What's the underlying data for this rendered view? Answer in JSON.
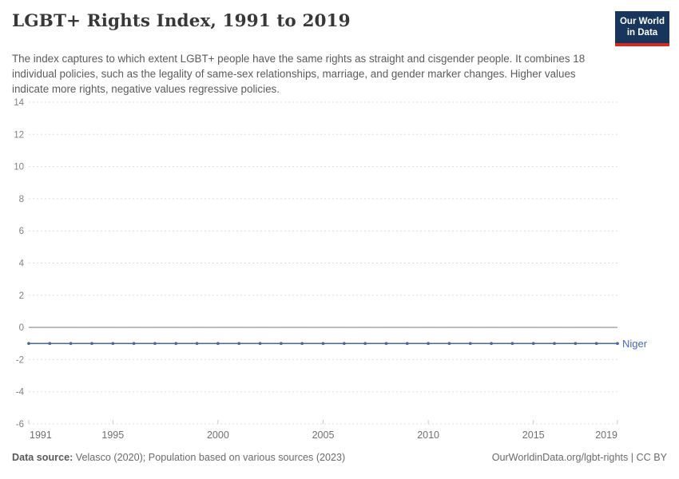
{
  "header": {
    "title": "LGBT+ Rights Index, 1991 to 2019",
    "subtitle": "The index captures to which extent LGBT+ people have the same rights as straight and cisgender people. It combines 18 individual policies, such as the legality of same-sex relationships, marriage, and gender marker changes. Higher values indicate more rights, negative values regressive policies.",
    "logo": {
      "line1": "Our World",
      "line2": "in Data"
    }
  },
  "chart_data": {
    "type": "line",
    "title": "LGBT+ Rights Index, 1991 to 2019",
    "xlabel": "",
    "ylabel": "",
    "xlim": [
      1991,
      2019
    ],
    "ylim": [
      -6,
      14
    ],
    "x_ticks": [
      1991,
      1995,
      2000,
      2005,
      2010,
      2015,
      2019
    ],
    "y_ticks": [
      14,
      12,
      10,
      8,
      6,
      4,
      2,
      0,
      -2,
      -4,
      -6
    ],
    "grid": "horizontal-dashed",
    "zero_line": true,
    "legend_position": "end-of-line-label",
    "series": [
      {
        "name": "Niger",
        "color": "#4a67a8",
        "x": [
          1991,
          1992,
          1993,
          1994,
          1995,
          1996,
          1997,
          1998,
          1999,
          2000,
          2001,
          2002,
          2003,
          2004,
          2005,
          2006,
          2007,
          2008,
          2009,
          2010,
          2011,
          2012,
          2013,
          2014,
          2015,
          2016,
          2017,
          2018,
          2019
        ],
        "values": [
          -1,
          -1,
          -1,
          -1,
          -1,
          -1,
          -1,
          -1,
          -1,
          -1,
          -1,
          -1,
          -1,
          -1,
          -1,
          -1,
          -1,
          -1,
          -1,
          -1,
          -1,
          -1,
          -1,
          -1,
          -1,
          -1,
          -1,
          -1,
          -1
        ]
      }
    ]
  },
  "footer": {
    "source_label": "Data source:",
    "source_text": " Velasco (2020); Population based on various sources (2023)",
    "link_text": "OurWorldinData.org/lgbt-rights | CC BY"
  },
  "colors": {
    "accent_line": "#4a67a8",
    "grid": "#dedede",
    "zero_line": "#a6a6a6",
    "axis_text": "#808080",
    "logo_bg": "#18355e",
    "logo_bar": "#d42b20"
  }
}
